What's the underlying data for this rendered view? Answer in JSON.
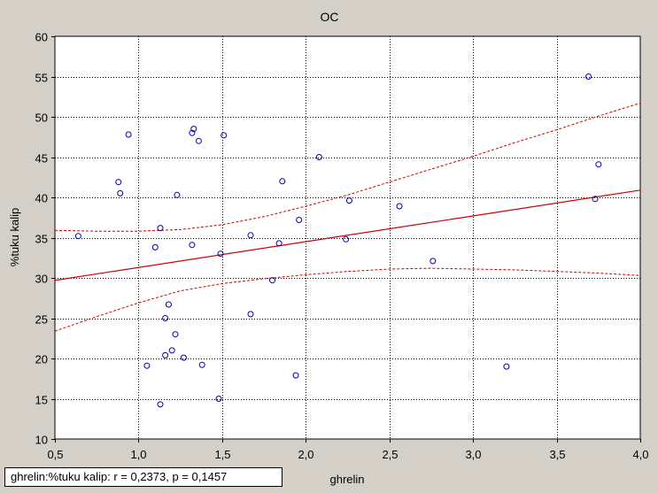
{
  "chart_data": {
    "type": "scatter",
    "title": "OC",
    "xlabel": "ghrelin",
    "ylabel": "%tuku kalip",
    "xlim": [
      0.5,
      4.0
    ],
    "ylim": [
      10,
      60
    ],
    "xticks": [
      "0,5",
      "1,0",
      "1,5",
      "2,0",
      "2,5",
      "3,0",
      "3,5",
      "4,0"
    ],
    "yticks": [
      "10",
      "15",
      "20",
      "25",
      "30",
      "35",
      "40",
      "45",
      "50",
      "55",
      "60"
    ],
    "grid": true,
    "points": [
      [
        0.64,
        35.2
      ],
      [
        0.88,
        41.9
      ],
      [
        0.89,
        40.5
      ],
      [
        0.94,
        47.8
      ],
      [
        1.05,
        19.1
      ],
      [
        1.1,
        33.8
      ],
      [
        1.13,
        36.2
      ],
      [
        1.13,
        14.3
      ],
      [
        1.16,
        25.0
      ],
      [
        1.16,
        20.4
      ],
      [
        1.18,
        26.7
      ],
      [
        1.2,
        21.0
      ],
      [
        1.22,
        23.0
      ],
      [
        1.23,
        40.3
      ],
      [
        1.27,
        20.1
      ],
      [
        1.32,
        48.0
      ],
      [
        1.32,
        34.1
      ],
      [
        1.33,
        48.5
      ],
      [
        1.36,
        47.0
      ],
      [
        1.38,
        19.2
      ],
      [
        1.48,
        15.0
      ],
      [
        1.49,
        33.0
      ],
      [
        1.51,
        47.7
      ],
      [
        1.67,
        35.3
      ],
      [
        1.67,
        25.5
      ],
      [
        1.8,
        29.7
      ],
      [
        1.84,
        34.3
      ],
      [
        1.86,
        42.0
      ],
      [
        1.94,
        17.9
      ],
      [
        1.96,
        37.2
      ],
      [
        2.08,
        45.0
      ],
      [
        2.24,
        34.8
      ],
      [
        2.26,
        39.6
      ],
      [
        2.56,
        38.9
      ],
      [
        2.76,
        32.1
      ],
      [
        3.2,
        19.0
      ],
      [
        3.69,
        55.0
      ],
      [
        3.73,
        39.8
      ],
      [
        3.75,
        44.1
      ]
    ],
    "regression_line": {
      "x": [
        0.5,
        4.0
      ],
      "y": [
        29.7,
        40.9
      ]
    },
    "confidence_upper": {
      "x": [
        0.5,
        0.75,
        1.0,
        1.25,
        1.5,
        1.75,
        2.0,
        2.25,
        2.5,
        2.75,
        3.0,
        3.25,
        3.5,
        3.75,
        4.0
      ],
      "y": [
        35.9,
        35.8,
        35.8,
        36.0,
        36.6,
        37.6,
        38.9,
        40.3,
        41.9,
        43.5,
        45.1,
        46.8,
        48.4,
        50.1,
        51.7
      ]
    },
    "confidence_lower": {
      "x": [
        0.5,
        0.75,
        1.0,
        1.25,
        1.5,
        1.75,
        2.0,
        2.25,
        2.5,
        2.75,
        3.0,
        3.25,
        3.5,
        3.75,
        4.0
      ],
      "y": [
        23.4,
        25.2,
        26.9,
        28.4,
        29.3,
        29.9,
        30.4,
        30.8,
        31.1,
        31.2,
        31.1,
        31.0,
        30.8,
        30.6,
        30.3
      ]
    },
    "stat_label": "ghrelin:%tuku kalip:   r = 0,2373, p = 0,1457",
    "colors": {
      "background": "#d4d0c8",
      "plot_area": "#ffffff",
      "points": "#0000aa",
      "regression": "#cc0000",
      "grid": "#000000"
    }
  }
}
